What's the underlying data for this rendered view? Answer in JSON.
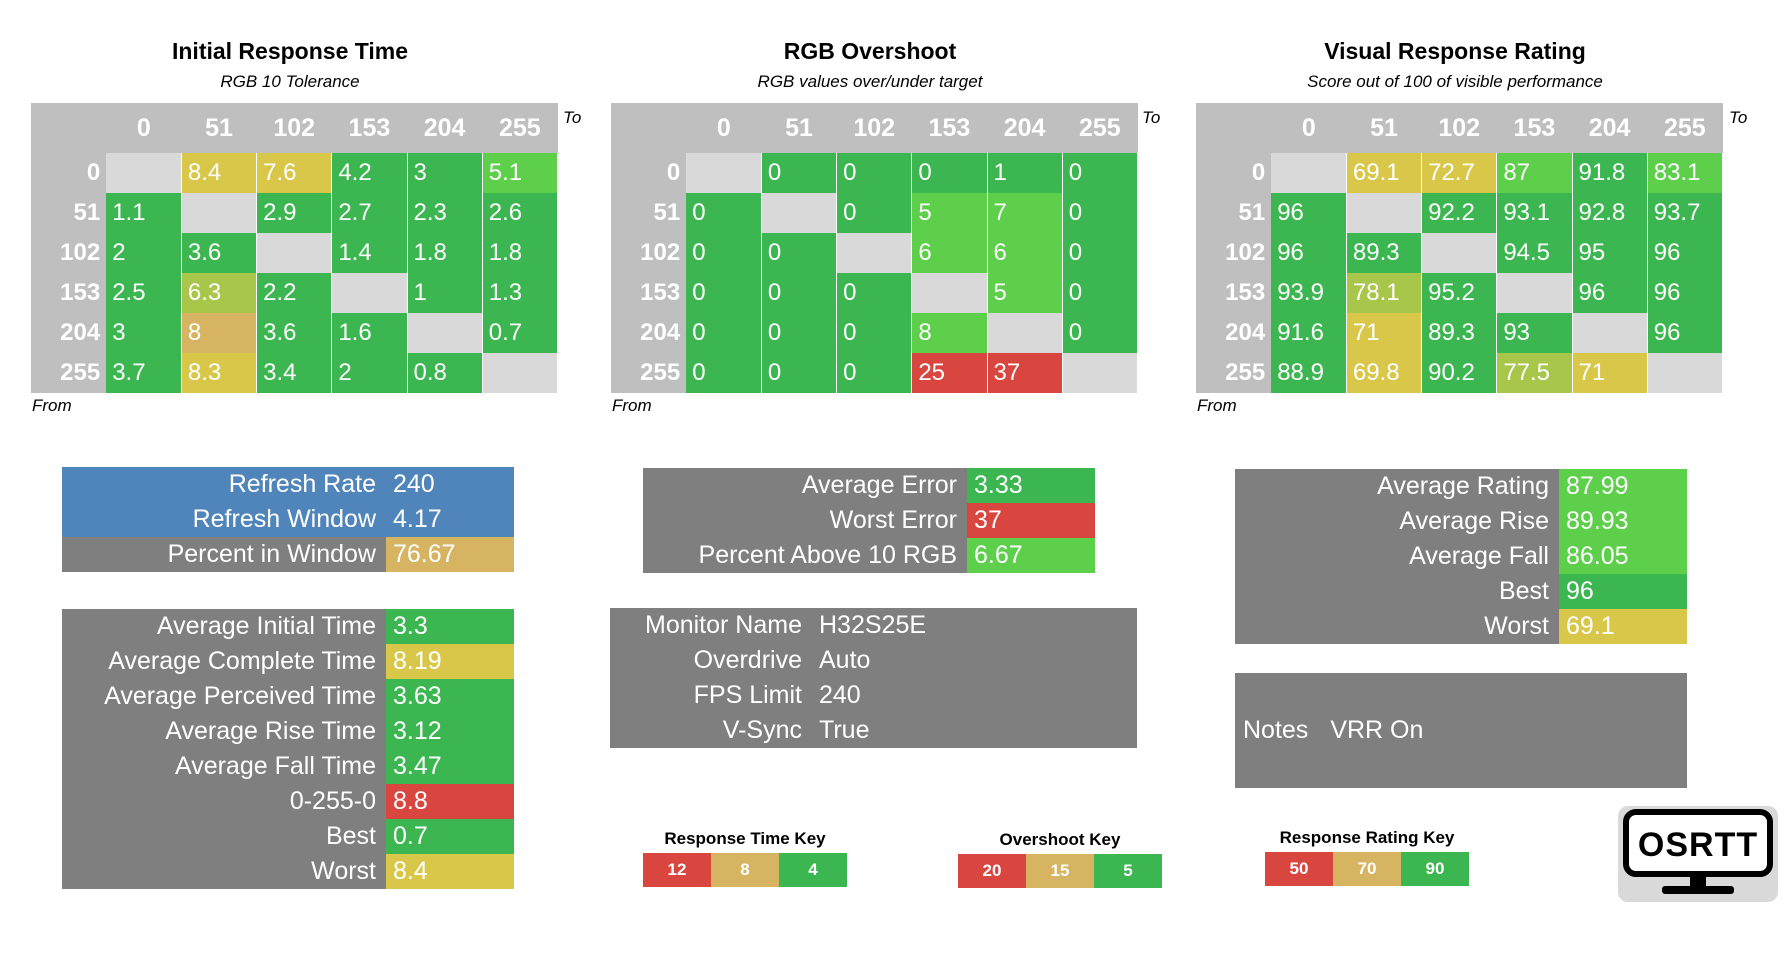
{
  "colors": {
    "green": "#3cb650",
    "lightgreen": "#5ecf4a",
    "yellowgreen": "#a8c64a",
    "yellow": "#d9c74a",
    "tan": "#d6b461",
    "red": "#d9463f",
    "blue": "#4f85ba",
    "gray": "#7f7f7f",
    "header": "#bfbfbf",
    "diag": "#d9d9d9"
  },
  "chart_data": [
    {
      "type": "heatmap",
      "title": "Initial Response Time",
      "subtitle": "RGB 10 Tolerance",
      "xlabel": "To",
      "ylabel": "From",
      "columns": [
        "0",
        "51",
        "102",
        "153",
        "204",
        "255"
      ],
      "rows": [
        "0",
        "51",
        "102",
        "153",
        "204",
        "255"
      ],
      "values": [
        [
          null,
          "8.4",
          "7.6",
          "4.2",
          "3",
          "5.1"
        ],
        [
          "1.1",
          null,
          "2.9",
          "2.7",
          "2.3",
          "2.6"
        ],
        [
          "2",
          "3.6",
          null,
          "1.4",
          "1.8",
          "1.8"
        ],
        [
          "2.5",
          "6.3",
          "2.2",
          null,
          "1",
          "1.3"
        ],
        [
          "3",
          "8",
          "3.6",
          "1.6",
          null,
          "0.7"
        ],
        [
          "3.7",
          "8.3",
          "3.4",
          "2",
          "0.8",
          null
        ]
      ],
      "colors": [
        [
          null,
          "yellow",
          "yellow",
          "green",
          "green",
          "lightgreen"
        ],
        [
          "green",
          null,
          "green",
          "green",
          "green",
          "green"
        ],
        [
          "green",
          "green",
          null,
          "green",
          "green",
          "green"
        ],
        [
          "green",
          "yellowgreen",
          "green",
          null,
          "green",
          "green"
        ],
        [
          "green",
          "tan",
          "green",
          "green",
          null,
          "green"
        ],
        [
          "green",
          "yellow",
          "green",
          "green",
          "green",
          null
        ]
      ]
    },
    {
      "type": "heatmap",
      "title": "RGB Overshoot",
      "subtitle": "RGB values over/under target",
      "xlabel": "To",
      "ylabel": "From",
      "columns": [
        "0",
        "51",
        "102",
        "153",
        "204",
        "255"
      ],
      "rows": [
        "0",
        "51",
        "102",
        "153",
        "204",
        "255"
      ],
      "values": [
        [
          null,
          "0",
          "0",
          "0",
          "1",
          "0"
        ],
        [
          "0",
          null,
          "0",
          "5",
          "7",
          "0"
        ],
        [
          "0",
          "0",
          null,
          "6",
          "6",
          "0"
        ],
        [
          "0",
          "0",
          "0",
          null,
          "5",
          "0"
        ],
        [
          "0",
          "0",
          "0",
          "8",
          null,
          "0"
        ],
        [
          "0",
          "0",
          "0",
          "25",
          "37",
          null
        ]
      ],
      "colors": [
        [
          null,
          "green",
          "green",
          "green",
          "green",
          "green"
        ],
        [
          "green",
          null,
          "green",
          "lightgreen",
          "lightgreen",
          "green"
        ],
        [
          "green",
          "green",
          null,
          "lightgreen",
          "lightgreen",
          "green"
        ],
        [
          "green",
          "green",
          "green",
          null,
          "lightgreen",
          "green"
        ],
        [
          "green",
          "green",
          "green",
          "lightgreen",
          null,
          "green"
        ],
        [
          "green",
          "green",
          "green",
          "red",
          "red",
          null
        ]
      ]
    },
    {
      "type": "heatmap",
      "title": "Visual Response Rating",
      "subtitle": "Score out of 100 of visible performance",
      "xlabel": "To",
      "ylabel": "From",
      "columns": [
        "0",
        "51",
        "102",
        "153",
        "204",
        "255"
      ],
      "rows": [
        "0",
        "51",
        "102",
        "153",
        "204",
        "255"
      ],
      "values": [
        [
          null,
          "69.1",
          "72.7",
          "87",
          "91.8",
          "83.1"
        ],
        [
          "96",
          null,
          "92.2",
          "93.1",
          "92.8",
          "93.7"
        ],
        [
          "96",
          "89.3",
          null,
          "94.5",
          "95",
          "96"
        ],
        [
          "93.9",
          "78.1",
          "95.2",
          null,
          "96",
          "96"
        ],
        [
          "91.6",
          "71",
          "89.3",
          "93",
          null,
          "96"
        ],
        [
          "88.9",
          "69.8",
          "90.2",
          "77.5",
          "71",
          null
        ]
      ],
      "colors": [
        [
          null,
          "yellow",
          "yellow",
          "lightgreen",
          "green",
          "lightgreen"
        ],
        [
          "green",
          null,
          "green",
          "green",
          "green",
          "green"
        ],
        [
          "green",
          "green",
          null,
          "green",
          "green",
          "green"
        ],
        [
          "green",
          "yellowgreen",
          "green",
          null,
          "green",
          "green"
        ],
        [
          "green",
          "yellow",
          "green",
          "green",
          null,
          "green"
        ],
        [
          "green",
          "yellow",
          "green",
          "yellowgreen",
          "yellow",
          null
        ]
      ]
    }
  ],
  "refresh": [
    {
      "label": "Refresh Rate",
      "value": "240",
      "color": "blue",
      "labelColor": "blue"
    },
    {
      "label": "Refresh Window",
      "value": "4.17",
      "color": "blue",
      "labelColor": "blue"
    },
    {
      "label": "Percent in Window",
      "value": "76.67",
      "color": "tan",
      "labelColor": "gray"
    }
  ],
  "response_stats": [
    {
      "label": "Average Initial Time",
      "value": "3.3",
      "color": "green"
    },
    {
      "label": "Average Complete Time",
      "value": "8.19",
      "color": "yellow"
    },
    {
      "label": "Average Perceived Time",
      "value": "3.63",
      "color": "green"
    },
    {
      "label": "Average Rise Time",
      "value": "3.12",
      "color": "green"
    },
    {
      "label": "Average Fall Time",
      "value": "3.47",
      "color": "green"
    },
    {
      "label": "0-255-0",
      "value": "8.8",
      "color": "red"
    },
    {
      "label": "Best",
      "value": "0.7",
      "color": "green"
    },
    {
      "label": "Worst",
      "value": "8.4",
      "color": "yellow"
    }
  ],
  "overshoot_stats": [
    {
      "label": "Average Error",
      "value": "3.33",
      "color": "green"
    },
    {
      "label": "Worst Error",
      "value": "37",
      "color": "red"
    },
    {
      "label": "Percent Above 10 RGB",
      "value": "6.67",
      "color": "lightgreen"
    }
  ],
  "monitor_info": [
    {
      "label": "Monitor Name",
      "value": "H32S25E"
    },
    {
      "label": "Overdrive",
      "value": "Auto"
    },
    {
      "label": "FPS Limit",
      "value": "240"
    },
    {
      "label": "V-Sync",
      "value": "True"
    }
  ],
  "rating_stats": [
    {
      "label": "Average Rating",
      "value": "87.99",
      "color": "lightgreen"
    },
    {
      "label": "Average Rise",
      "value": "89.93",
      "color": "lightgreen"
    },
    {
      "label": "Average Fall",
      "value": "86.05",
      "color": "lightgreen"
    },
    {
      "label": "Best",
      "value": "96",
      "color": "green"
    },
    {
      "label": "Worst",
      "value": "69.1",
      "color": "yellow"
    }
  ],
  "notes": {
    "label": "Notes",
    "value": "VRR On"
  },
  "keys": [
    {
      "title": "Response Time Key",
      "items": [
        {
          "text": "12",
          "color": "red"
        },
        {
          "text": "8",
          "color": "tan"
        },
        {
          "text": "4",
          "color": "green"
        }
      ]
    },
    {
      "title": "Overshoot Key",
      "items": [
        {
          "text": "20",
          "color": "red"
        },
        {
          "text": "15",
          "color": "tan"
        },
        {
          "text": "5",
          "color": "green"
        }
      ]
    },
    {
      "title": "Response Rating Key",
      "items": [
        {
          "text": "50",
          "color": "red"
        },
        {
          "text": "70",
          "color": "tan"
        },
        {
          "text": "90",
          "color": "green"
        }
      ]
    }
  ],
  "logo": {
    "text": "OSRTT"
  }
}
